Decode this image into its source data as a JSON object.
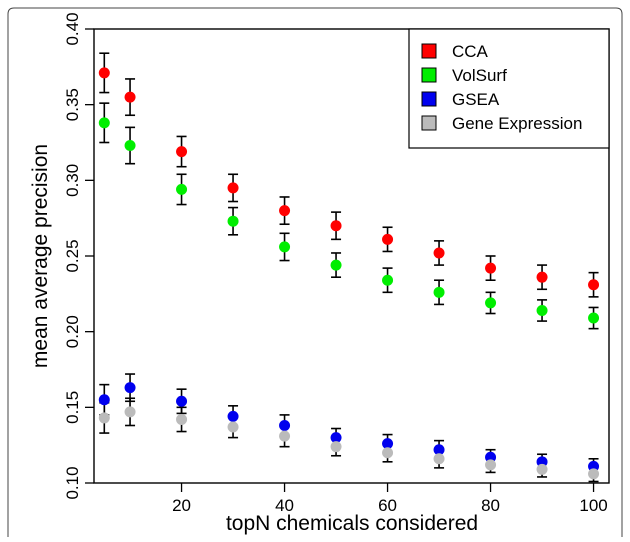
{
  "chart_data": {
    "type": "scatter",
    "xlabel": "topN chemicals considered",
    "ylabel": "mean average precision",
    "xlim": [
      3,
      103
    ],
    "ylim": [
      0.1,
      0.4
    ],
    "x_ticks": [
      20,
      40,
      60,
      80,
      100
    ],
    "y_ticks": [
      0.1,
      0.15,
      0.2,
      0.25,
      0.3,
      0.35,
      0.4
    ],
    "x_tick_labels": [
      "20",
      "40",
      "60",
      "80",
      "100"
    ],
    "y_tick_labels": [
      "0.10",
      "0.15",
      "0.20",
      "0.25",
      "0.30",
      "0.35",
      "0.40"
    ],
    "grid": false,
    "legend_position": "top-right",
    "x": [
      5,
      10,
      20,
      30,
      40,
      50,
      60,
      70,
      80,
      90,
      100
    ],
    "series": [
      {
        "name": "CCA",
        "color": "#ff0000",
        "values": [
          0.371,
          0.355,
          0.319,
          0.295,
          0.28,
          0.27,
          0.261,
          0.252,
          0.242,
          0.236,
          0.231
        ],
        "errors": [
          0.013,
          0.012,
          0.01,
          0.009,
          0.009,
          0.009,
          0.008,
          0.008,
          0.008,
          0.008,
          0.008
        ]
      },
      {
        "name": "VolSurf",
        "color": "#00ee00",
        "values": [
          0.338,
          0.323,
          0.294,
          0.273,
          0.256,
          0.244,
          0.234,
          0.226,
          0.219,
          0.214,
          0.209
        ],
        "errors": [
          0.013,
          0.012,
          0.01,
          0.009,
          0.009,
          0.008,
          0.008,
          0.008,
          0.007,
          0.007,
          0.007
        ]
      },
      {
        "name": "GSEA",
        "color": "#0000ee",
        "values": [
          0.155,
          0.163,
          0.154,
          0.144,
          0.138,
          0.13,
          0.126,
          0.122,
          0.117,
          0.114,
          0.111
        ],
        "errors": [
          0.01,
          0.009,
          0.008,
          0.007,
          0.007,
          0.006,
          0.006,
          0.006,
          0.005,
          0.005,
          0.005
        ]
      },
      {
        "name": "Gene Expression",
        "color": "#bbbbbb",
        "values": [
          0.143,
          0.147,
          0.142,
          0.137,
          0.131,
          0.124,
          0.12,
          0.116,
          0.112,
          0.109,
          0.106
        ],
        "errors": [
          0.01,
          0.009,
          0.008,
          0.007,
          0.007,
          0.006,
          0.006,
          0.006,
          0.005,
          0.005,
          0.005
        ]
      }
    ]
  }
}
